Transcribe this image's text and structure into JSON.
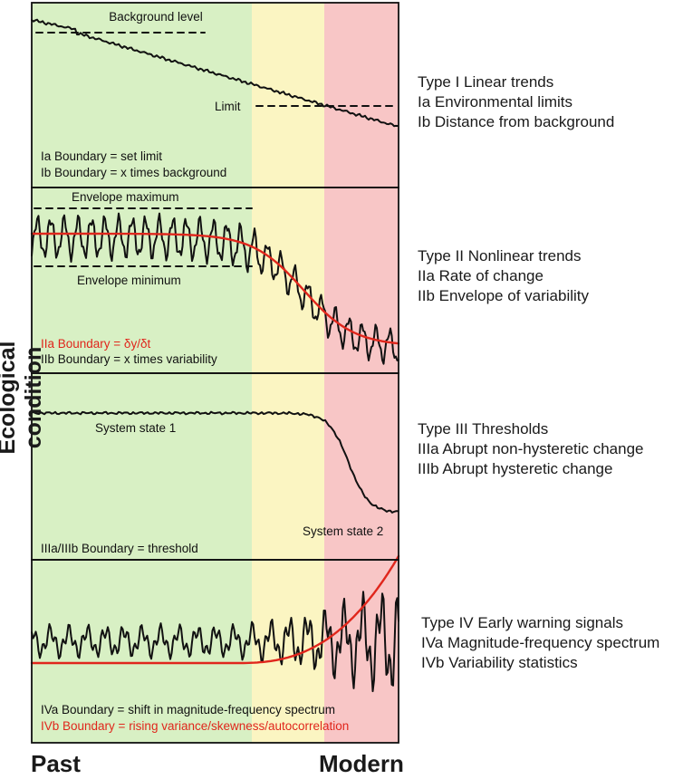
{
  "axis": {
    "ylabel": "Ecological condition",
    "x_start": "Past",
    "x_end": "Modern"
  },
  "colors": {
    "green": "#d8f0c4",
    "yellow": "#fbf5c2",
    "red": "#f8c6c6",
    "trend_red": "#e0261c",
    "black": "#111111"
  },
  "panels": [
    {
      "in_panel_labels": [
        "Background level",
        "Limit"
      ],
      "boundary_lines": [
        "Ia Boundary = set limit",
        "Ib Boundary = x times background"
      ],
      "title": "Type I Linear trends",
      "items": [
        "Ia Environmental limits",
        "Ib Distance from background"
      ]
    },
    {
      "in_panel_labels": [
        "Envelope maximum",
        "Envelope minimum"
      ],
      "boundary_lines": [
        "IIa Boundary = δy/δt",
        "IIb Boundary = x times variability"
      ],
      "title": "Type II Nonlinear trends",
      "items": [
        "IIa Rate of change",
        "IIb Envelope of variability"
      ]
    },
    {
      "in_panel_labels": [
        "System state 1",
        "System state 2"
      ],
      "boundary_lines": [
        "IIIa/IIIb Boundary = threshold"
      ],
      "title": "Type III Thresholds",
      "items": [
        "IIIa Abrupt non-hysteretic change",
        "IIIb Abrupt hysteretic change"
      ]
    },
    {
      "in_panel_labels": [],
      "boundary_lines": [
        "IVa Boundary = shift in magnitude-frequency spectrum",
        "IVb Boundary = rising variance/skewness/autocorrelation"
      ],
      "title": "Type IV Early warning signals",
      "items": [
        "IVa Magnitude-frequency spectrum",
        "IVb Variability statistics"
      ]
    }
  ]
}
